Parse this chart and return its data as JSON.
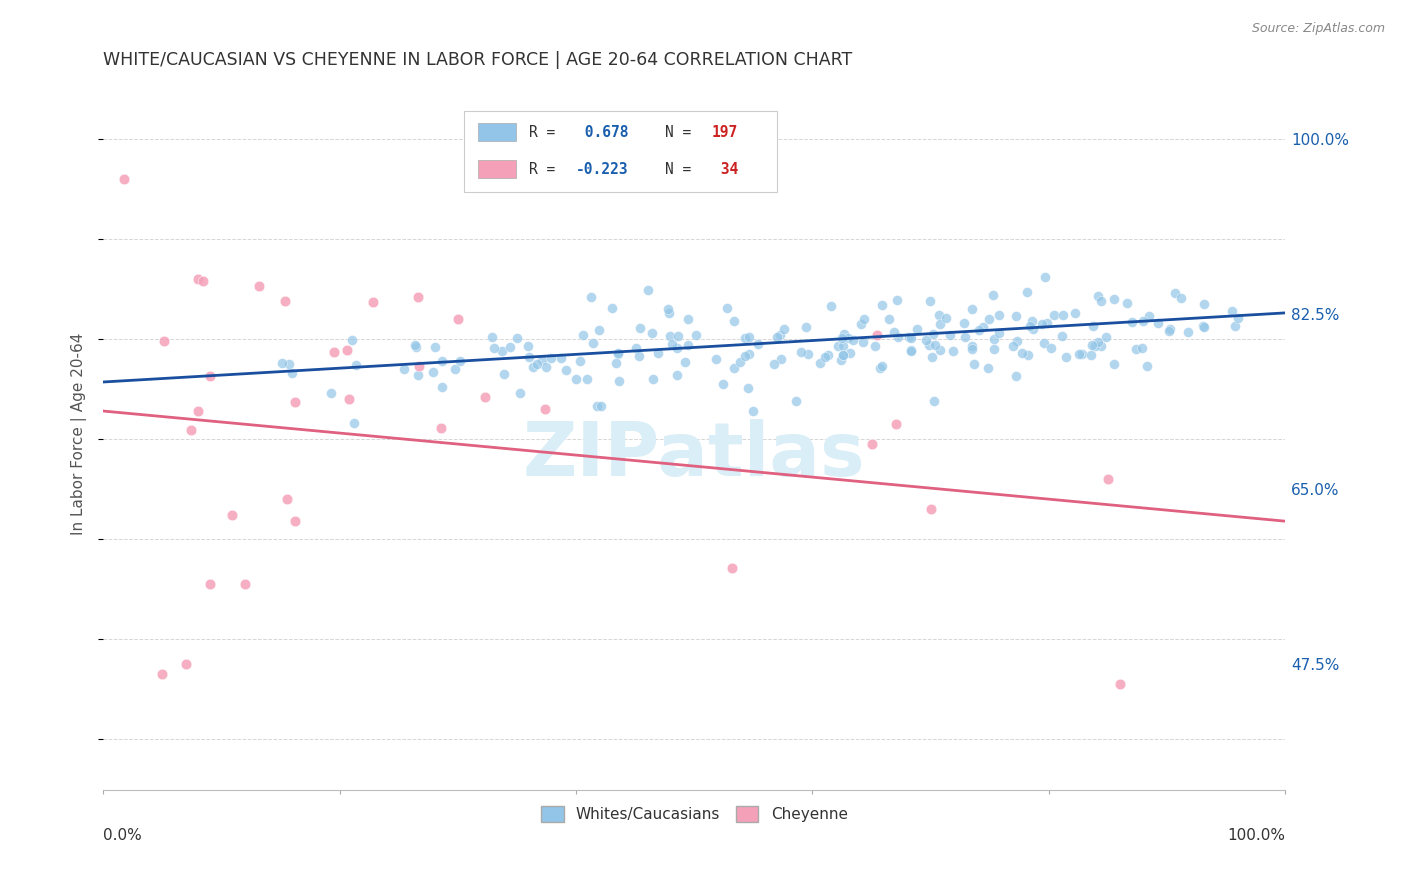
{
  "title": "WHITE/CAUCASIAN VS CHEYENNE IN LABOR FORCE | AGE 20-64 CORRELATION CHART",
  "source": "Source: ZipAtlas.com",
  "ylabel": "In Labor Force | Age 20-64",
  "ytick_labels": [
    "47.5%",
    "65.0%",
    "82.5%",
    "100.0%"
  ],
  "ytick_values": [
    0.475,
    0.65,
    0.825,
    1.0
  ],
  "xlim": [
    0.0,
    1.0
  ],
  "ylim": [
    0.35,
    1.06
  ],
  "blue_R": 0.678,
  "blue_N": 197,
  "pink_R": -0.223,
  "pink_N": 34,
  "blue_color": "#92c5e8",
  "pink_color": "#f4a0b8",
  "blue_line_color": "#1a4fa0",
  "pink_line_color": "#e06080",
  "watermark": "ZIPatlas",
  "watermark_color": "#daeef8",
  "legend_R_color": "#1a5fad",
  "legend_N_color": "#cc2222",
  "background_color": "#ffffff",
  "grid_color": "#cccccc",
  "title_color": "#333333",
  "blue_trend_start_y": 0.757,
  "blue_trend_end_y": 0.826,
  "pink_trend_start_y": 0.728,
  "pink_trend_end_y": 0.618
}
